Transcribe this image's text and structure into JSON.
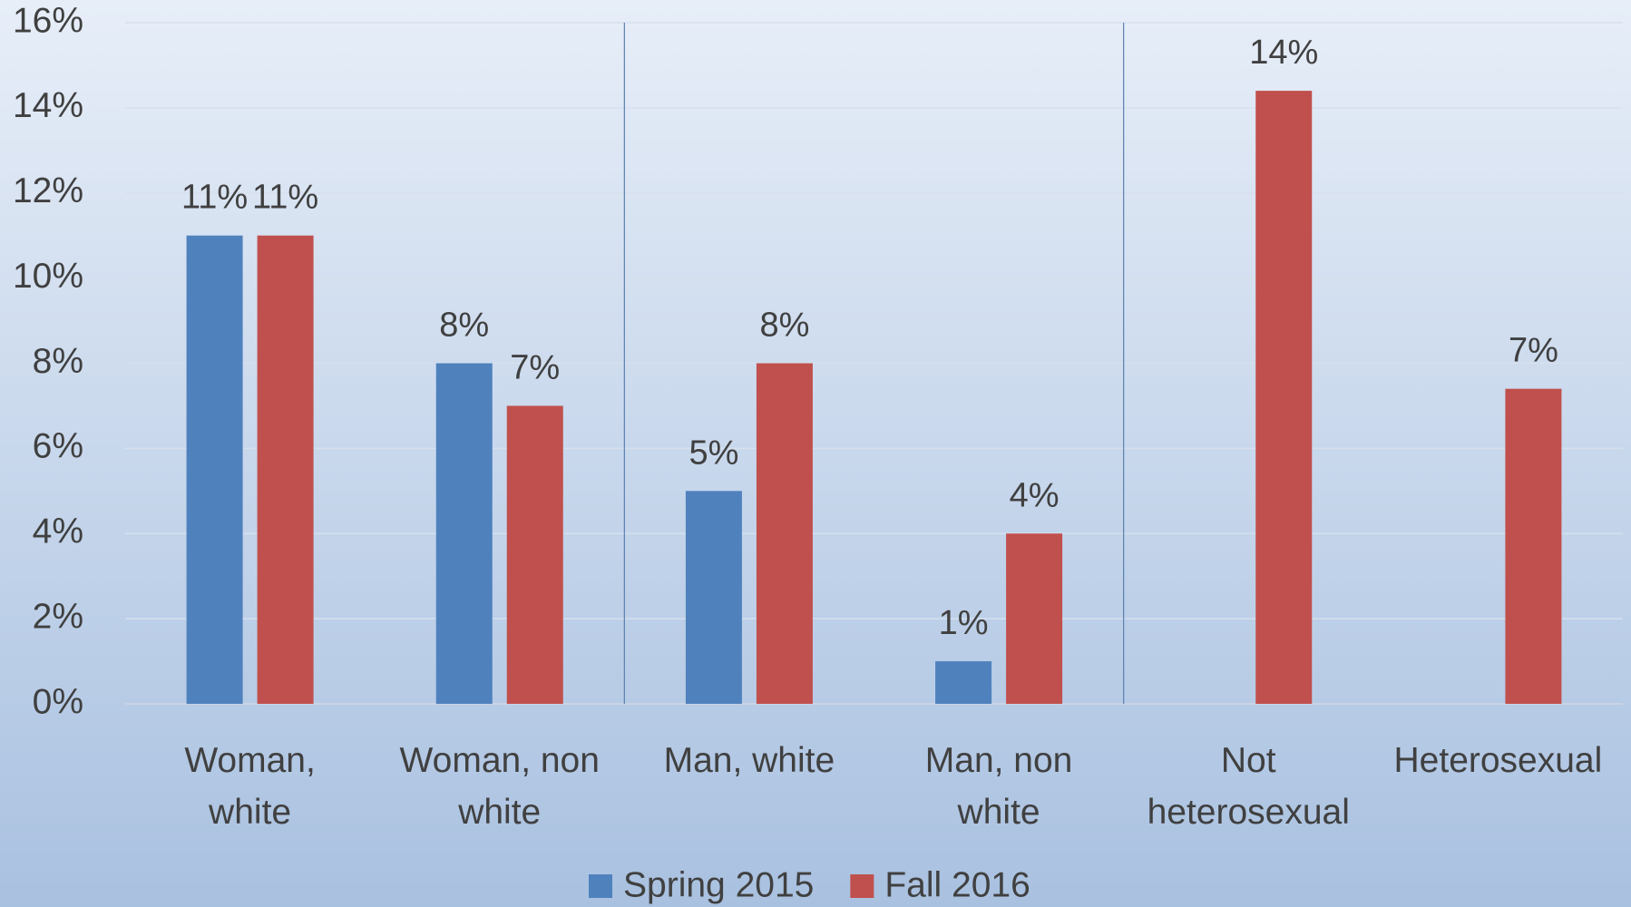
{
  "chart_data": {
    "type": "bar",
    "categories": [
      "Woman, white",
      "Woman, non white",
      "Man, white",
      "Man, non white",
      "Not heterosexual",
      "Heterosexual"
    ],
    "series": [
      {
        "name": "Spring 2015",
        "color": "#4f81bd",
        "values": [
          11,
          8,
          5,
          1,
          null,
          null
        ],
        "value_labels": [
          "11%",
          "8%",
          "5%",
          "1%",
          null,
          null
        ]
      },
      {
        "name": "Fall 2016",
        "color": "#c0504d",
        "values": [
          11,
          7,
          8,
          4,
          14.4,
          7.4
        ],
        "value_labels": [
          "11%",
          "7%",
          "8%",
          "4%",
          "14%",
          "7%"
        ]
      }
    ],
    "ylim": [
      0,
      16
    ],
    "yticks": [
      {
        "value": 0,
        "label": "0%"
      },
      {
        "value": 2,
        "label": "2%"
      },
      {
        "value": 4,
        "label": "4%"
      },
      {
        "value": 6,
        "label": "6%"
      },
      {
        "value": 8,
        "label": "8%"
      },
      {
        "value": 10,
        "label": "10%"
      },
      {
        "value": 12,
        "label": "12%"
      },
      {
        "value": 14,
        "label": "14%"
      },
      {
        "value": 16,
        "label": "16%"
      }
    ],
    "grid": true,
    "legend": "bottom"
  }
}
